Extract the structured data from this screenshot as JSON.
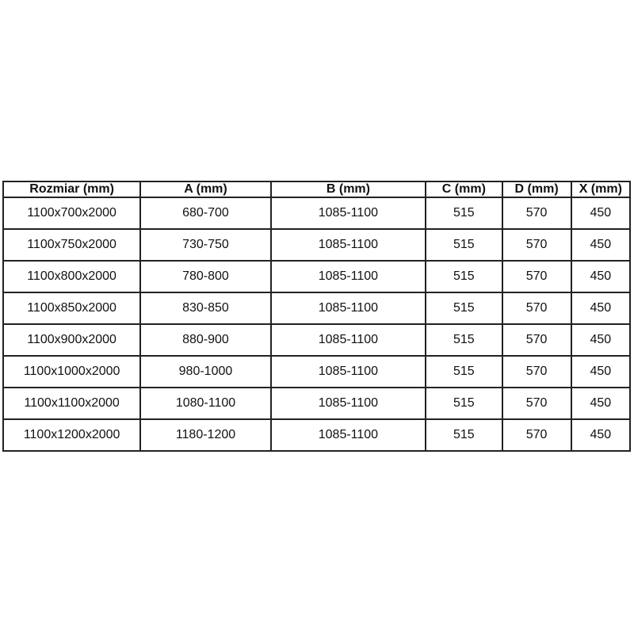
{
  "table": {
    "headers": [
      "Rozmiar (mm)",
      "A (mm)",
      "B (mm)",
      "C (mm)",
      "D (mm)",
      "X (mm)"
    ],
    "rows": [
      [
        "1100x700x2000",
        "680-700",
        "1085-1100",
        "515",
        "570",
        "450"
      ],
      [
        "1100x750x2000",
        "730-750",
        "1085-1100",
        "515",
        "570",
        "450"
      ],
      [
        "1100x800x2000",
        "780-800",
        "1085-1100",
        "515",
        "570",
        "450"
      ],
      [
        "1100x850x2000",
        "830-850",
        "1085-1100",
        "515",
        "570",
        "450"
      ],
      [
        "1100x900x2000",
        "880-900",
        "1085-1100",
        "515",
        "570",
        "450"
      ],
      [
        "1100x1000x2000",
        "980-1000",
        "1085-1100",
        "515",
        "570",
        "450"
      ],
      [
        "1100x1100x2000",
        "1080-1100",
        "1085-1100",
        "515",
        "570",
        "450"
      ],
      [
        "1100x1200x2000",
        "1180-1200",
        "1085-1100",
        "515",
        "570",
        "450"
      ]
    ],
    "colors": {
      "border": "#222222",
      "text": "#111111",
      "background": "#ffffff"
    }
  }
}
